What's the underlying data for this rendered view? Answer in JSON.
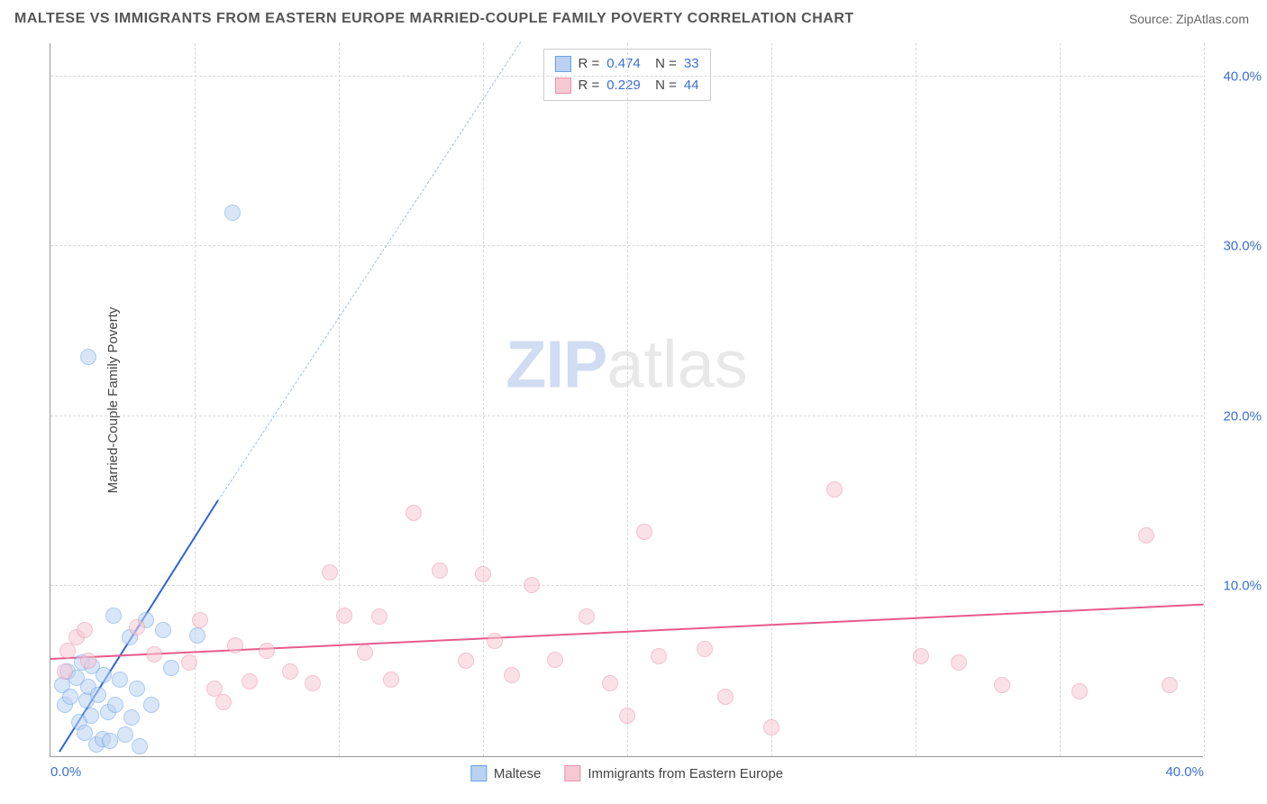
{
  "title": "MALTESE VS IMMIGRANTS FROM EASTERN EUROPE MARRIED-COUPLE FAMILY POVERTY CORRELATION CHART",
  "source_label": "Source: ",
  "source_value": "ZipAtlas.com",
  "ylabel": "Married-Couple Family Poverty",
  "watermark": {
    "zip": "ZIP",
    "atlas": "atlas"
  },
  "chart": {
    "type": "scatter",
    "xlim": [
      0,
      40
    ],
    "ylim": [
      0,
      42
    ],
    "xticks": [
      0,
      40
    ],
    "xtick_labels": [
      "0.0%",
      "40.0%"
    ],
    "yticks": [
      10,
      20,
      30,
      40
    ],
    "ytick_labels": [
      "10.0%",
      "20.0%",
      "30.0%",
      "40.0%"
    ],
    "vgrid": [
      5,
      10,
      15,
      20,
      25,
      30,
      35,
      40
    ],
    "background_color": "#ffffff",
    "grid_color": "#d8d8d8",
    "axis_color": "#999999",
    "tick_label_color": "#3b6fd6",
    "point_radius": 9,
    "series": [
      {
        "name": "Maltese",
        "fill": "#b9d2f3",
        "stroke": "#6aa0e6",
        "fill_opacity": 0.55,
        "R": "0.474",
        "N": "33",
        "trend": {
          "solid": {
            "x1": 0.3,
            "y1": 0.2,
            "x2": 5.8,
            "y2": 15.0,
            "color": "#2f63d6"
          },
          "dash": {
            "x1": 5.8,
            "y1": 15.0,
            "x2": 16.3,
            "y2": 42.0,
            "color": "#9cbef0"
          }
        },
        "points": [
          [
            0.4,
            4.2
          ],
          [
            0.5,
            3.0
          ],
          [
            0.6,
            5.0
          ],
          [
            0.7,
            3.5
          ],
          [
            0.9,
            4.6
          ],
          [
            1.0,
            2.0
          ],
          [
            1.1,
            5.5
          ],
          [
            1.2,
            1.4
          ],
          [
            1.25,
            3.3
          ],
          [
            1.3,
            4.1
          ],
          [
            1.4,
            2.4
          ],
          [
            1.45,
            5.3
          ],
          [
            1.6,
            0.7
          ],
          [
            1.65,
            3.6
          ],
          [
            1.8,
            1.0
          ],
          [
            1.85,
            4.8
          ],
          [
            2.0,
            2.6
          ],
          [
            2.05,
            0.9
          ],
          [
            2.2,
            8.3
          ],
          [
            2.25,
            3.0
          ],
          [
            2.4,
            4.5
          ],
          [
            2.6,
            1.3
          ],
          [
            2.75,
            7.0
          ],
          [
            2.8,
            2.3
          ],
          [
            3.0,
            4.0
          ],
          [
            3.1,
            0.6
          ],
          [
            3.5,
            3.0
          ],
          [
            3.9,
            7.4
          ],
          [
            4.2,
            5.2
          ],
          [
            5.1,
            7.1
          ],
          [
            1.3,
            23.5
          ],
          [
            6.3,
            32.0
          ],
          [
            3.3,
            8.0
          ]
        ]
      },
      {
        "name": "Immigrants from Eastern Europe",
        "fill": "#f6c8d4",
        "stroke": "#ea91ac",
        "fill_opacity": 0.55,
        "R": "0.229",
        "N": "44",
        "trend": {
          "solid": {
            "x1": 0.0,
            "y1": 5.7,
            "x2": 40.0,
            "y2": 8.9,
            "color": "#e75a8d"
          }
        },
        "points": [
          [
            0.6,
            6.2
          ],
          [
            0.5,
            5.0
          ],
          [
            0.9,
            7.0
          ],
          [
            1.2,
            7.4
          ],
          [
            1.3,
            5.6
          ],
          [
            3.0,
            7.6
          ],
          [
            3.6,
            6.0
          ],
          [
            4.8,
            5.5
          ],
          [
            5.2,
            8.0
          ],
          [
            5.7,
            4.0
          ],
          [
            6.4,
            6.5
          ],
          [
            6.9,
            4.4
          ],
          [
            7.5,
            6.2
          ],
          [
            8.3,
            5.0
          ],
          [
            9.1,
            4.3
          ],
          [
            9.7,
            10.8
          ],
          [
            10.2,
            8.3
          ],
          [
            10.9,
            6.1
          ],
          [
            11.4,
            8.2
          ],
          [
            11.8,
            4.5
          ],
          [
            12.6,
            14.3
          ],
          [
            13.5,
            10.9
          ],
          [
            14.4,
            5.6
          ],
          [
            15.0,
            10.7
          ],
          [
            15.4,
            6.8
          ],
          [
            16.0,
            4.8
          ],
          [
            16.7,
            10.1
          ],
          [
            17.5,
            5.7
          ],
          [
            18.6,
            8.2
          ],
          [
            19.4,
            4.3
          ],
          [
            20.0,
            2.4
          ],
          [
            20.6,
            13.2
          ],
          [
            21.1,
            5.9
          ],
          [
            22.7,
            6.3
          ],
          [
            23.4,
            3.5
          ],
          [
            25.0,
            1.7
          ],
          [
            27.2,
            15.7
          ],
          [
            30.2,
            5.9
          ],
          [
            31.5,
            5.5
          ],
          [
            33.0,
            4.2
          ],
          [
            35.7,
            3.8
          ],
          [
            38.0,
            13.0
          ],
          [
            38.8,
            4.2
          ],
          [
            6.0,
            3.2
          ]
        ]
      }
    ]
  },
  "legend_bottom": [
    {
      "label": "Maltese",
      "fill": "#b9d2f3",
      "stroke": "#6aa0e6"
    },
    {
      "label": "Immigrants from Eastern Europe",
      "fill": "#f6c8d4",
      "stroke": "#ea91ac"
    }
  ]
}
